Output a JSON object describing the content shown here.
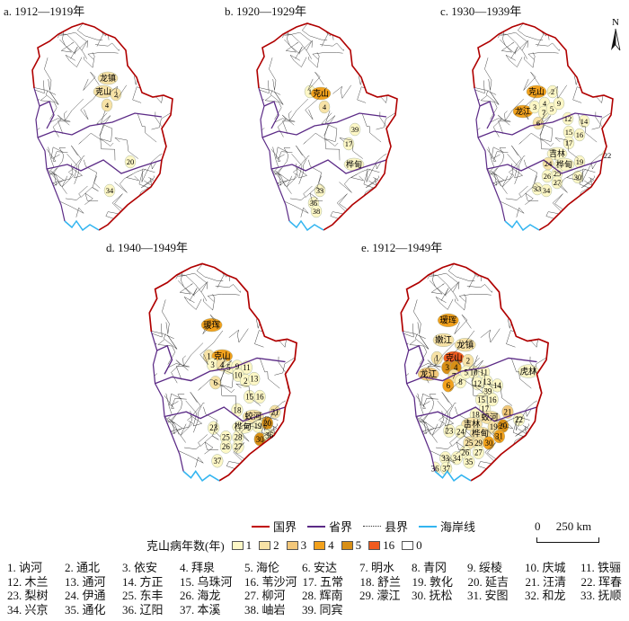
{
  "panels": [
    {
      "title": "a. 1912—1919年",
      "regions": [
        [
          "龙镇",
          2
        ],
        [
          "克山",
          2
        ],
        [
          "2",
          2
        ],
        [
          "4",
          2
        ],
        [
          "20",
          1
        ],
        [
          "34",
          1
        ]
      ]
    },
    {
      "title": "b. 1920—1929年",
      "regions": [
        [
          "1",
          1
        ],
        [
          "克山",
          4
        ],
        [
          "4",
          2
        ],
        [
          "39",
          1
        ],
        [
          "17",
          1
        ],
        [
          "桦甸",
          1
        ],
        [
          "33",
          1
        ],
        [
          "36",
          1
        ],
        [
          "38",
          1
        ]
      ]
    },
    {
      "title": "c. 1930—1939年",
      "regions": [
        [
          "克山",
          4
        ],
        [
          "龙江",
          4
        ],
        [
          "2",
          1
        ],
        [
          "3",
          1
        ],
        [
          "4",
          1
        ],
        [
          "7",
          1
        ],
        [
          "5",
          1
        ],
        [
          "9",
          1
        ],
        [
          "6",
          2
        ],
        [
          "12",
          1
        ],
        [
          "14",
          1
        ],
        [
          "15",
          1
        ],
        [
          "16",
          1
        ],
        [
          "17",
          1
        ],
        [
          "吉林",
          1
        ],
        [
          "桦甸",
          1
        ],
        [
          "19",
          1
        ],
        [
          "22",
          1
        ],
        [
          "24",
          2
        ],
        [
          "26",
          1
        ],
        [
          "25",
          1
        ],
        [
          "27",
          1
        ],
        [
          "30",
          1
        ],
        [
          "33",
          1
        ],
        [
          "34",
          1
        ]
      ]
    },
    {
      "title": "d. 1940—1949年",
      "regions": [
        [
          "瑷珲",
          4
        ],
        [
          "1",
          2
        ],
        [
          "克山",
          4
        ],
        [
          "3",
          1
        ],
        [
          "4",
          2
        ],
        [
          "5",
          1
        ],
        [
          "9",
          1
        ],
        [
          "11",
          1
        ],
        [
          "10",
          1
        ],
        [
          "6",
          2
        ],
        [
          "2",
          1
        ],
        [
          "13",
          1
        ],
        [
          "15",
          1
        ],
        [
          "16",
          1
        ],
        [
          "18",
          1
        ],
        [
          "蛟河",
          2
        ],
        [
          "21",
          2
        ],
        [
          "19",
          1
        ],
        [
          "20",
          5
        ],
        [
          "桦甸",
          1
        ],
        [
          "23",
          1
        ],
        [
          "25",
          1
        ],
        [
          "28",
          1
        ],
        [
          "30",
          5
        ],
        [
          "36",
          1
        ],
        [
          "26",
          1
        ],
        [
          "27",
          1
        ],
        [
          "37",
          1
        ]
      ]
    },
    {
      "title": "e. 1912—1949年",
      "regions": [
        [
          "瑷珲",
          4
        ],
        [
          "嫩江",
          2
        ],
        [
          "龙镇",
          2
        ],
        [
          "1",
          2
        ],
        [
          "克山",
          16
        ],
        [
          "3",
          5
        ],
        [
          "4",
          5
        ],
        [
          "2",
          2
        ],
        [
          "龙江",
          3
        ],
        [
          "7",
          2
        ],
        [
          "8",
          1
        ],
        [
          "5",
          1
        ],
        [
          "10",
          1
        ],
        [
          "11",
          1
        ],
        [
          "6",
          4
        ],
        [
          "12",
          1
        ],
        [
          "13",
          1
        ],
        [
          "14",
          1
        ],
        [
          "39",
          1
        ],
        [
          "15",
          1
        ],
        [
          "16",
          1
        ],
        [
          "17",
          1
        ],
        [
          "18",
          1
        ],
        [
          "吉林",
          2
        ],
        [
          "蛟河",
          2
        ],
        [
          "21",
          3
        ],
        [
          "22",
          1
        ],
        [
          "19",
          2
        ],
        [
          "20",
          5
        ],
        [
          "桦甸",
          2
        ],
        [
          "23",
          1
        ],
        [
          "24",
          1
        ],
        [
          "25",
          2
        ],
        [
          "29",
          2
        ],
        [
          "30",
          4
        ],
        [
          "31",
          4
        ],
        [
          "虎林",
          1
        ],
        [
          "26",
          1
        ],
        [
          "27",
          1
        ],
        [
          "33",
          1
        ],
        [
          "34",
          1
        ],
        [
          "35",
          1
        ],
        [
          "36",
          1
        ],
        [
          "37",
          1
        ]
      ]
    }
  ],
  "north_label": "N",
  "scale": {
    "zero": "0",
    "label": "250 km"
  },
  "legend": {
    "lines": [
      {
        "label": "国界",
        "color": "#c00000"
      },
      {
        "label": "省界",
        "color": "#5b2a86"
      },
      {
        "label": "县界",
        "color": "#333333"
      },
      {
        "label": "海岸线",
        "color": "#33b5f0"
      }
    ],
    "title": "克山病年数(年)",
    "classes": [
      {
        "label": "1",
        "color": "#fdf7c6"
      },
      {
        "label": "2",
        "color": "#f7e2a6"
      },
      {
        "label": "3",
        "color": "#f2c77a"
      },
      {
        "label": "4",
        "color": "#f2a11c"
      },
      {
        "label": "5",
        "color": "#d88f16"
      },
      {
        "label": "16",
        "color": "#f05a1e"
      },
      {
        "label": "0",
        "color": "#ffffff"
      }
    ]
  },
  "key": [
    [
      "1. 讷河",
      "2. 通北",
      "3. 依安",
      "4. 拜泉",
      "5. 海伦",
      "6. 安达",
      "7. 明水",
      "8. 青冈",
      "9. 绥棱",
      "10. 庆城",
      "11. 铁骊"
    ],
    [
      "12. 木兰",
      "13. 通河",
      "14. 方正",
      "15. 乌珠河",
      "16. 苇沙河",
      "17. 五常",
      "18. 舒兰",
      "19. 敦化",
      "20. 延吉",
      "21. 汪清",
      "22. 珲春"
    ],
    [
      "23. 梨树",
      "24. 伊通",
      "25. 东丰",
      "26. 海龙",
      "27. 柳河",
      "28. 辉南",
      "29. 濛江",
      "30. 抚松",
      "31. 安图",
      "32. 和龙",
      "33. 抚顺"
    ],
    [
      "34. 兴京",
      "35. 通化",
      "36. 辽阳",
      "37. 本溪",
      "38. 岫岩",
      "39. 同宾"
    ]
  ]
}
